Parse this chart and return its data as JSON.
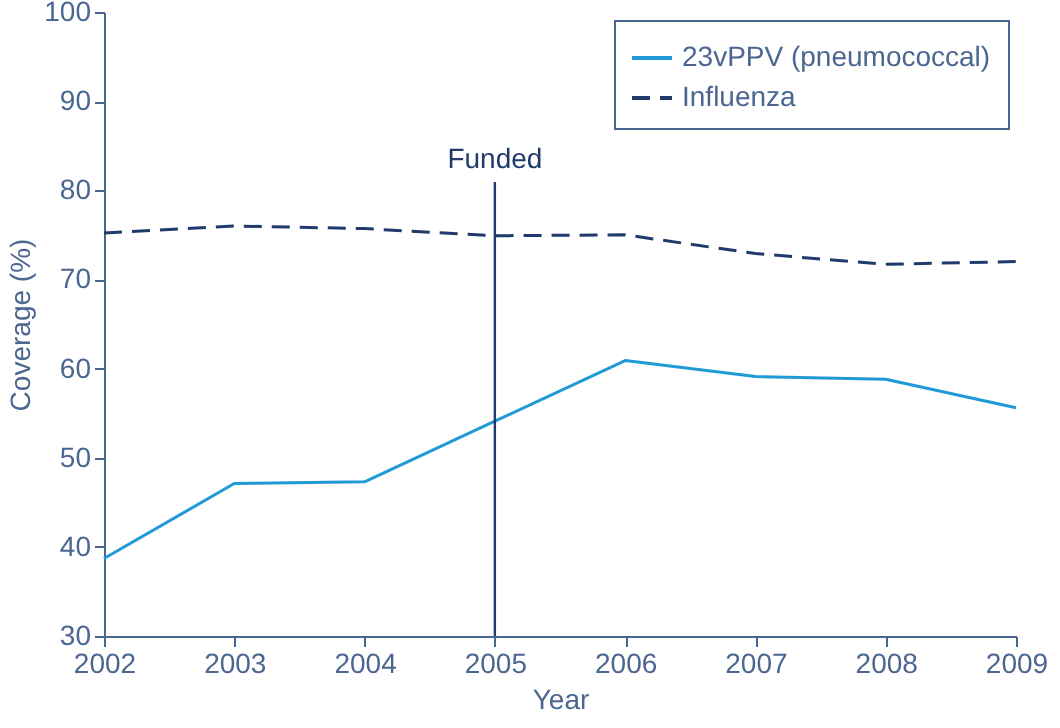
{
  "chart_data": {
    "type": "line",
    "xlabel": "Year",
    "ylabel": "Coverage (%)",
    "x": [
      2002,
      2003,
      2004,
      2005,
      2006,
      2007,
      2008,
      2009
    ],
    "series": [
      {
        "name": "23vPPV (pneumococcal)",
        "color": "#1f9ad6",
        "line_style": "solid",
        "values": [
          38.7,
          47.1,
          47.3,
          54.1,
          60.9,
          59.1,
          58.8,
          55.6
        ]
      },
      {
        "name": "Influenza",
        "color": "#1f3a6b",
        "line_style": "dashed",
        "values": [
          75.2,
          76.0,
          75.7,
          74.9,
          75.0,
          72.9,
          71.7,
          72.0
        ]
      }
    ],
    "xlim": [
      2002,
      2009
    ],
    "xticks": [
      2002,
      2003,
      2004,
      2005,
      2006,
      2007,
      2008,
      2009
    ],
    "ylim": [
      30,
      100
    ],
    "yticks": [
      30,
      40,
      50,
      60,
      70,
      80,
      90,
      100
    ],
    "grid": false,
    "legend": "top right",
    "marker": "none",
    "ref_lines": [
      {
        "axis": "x",
        "value": 2005,
        "label": "Funded",
        "color": "#1f3a6b"
      }
    ]
  }
}
